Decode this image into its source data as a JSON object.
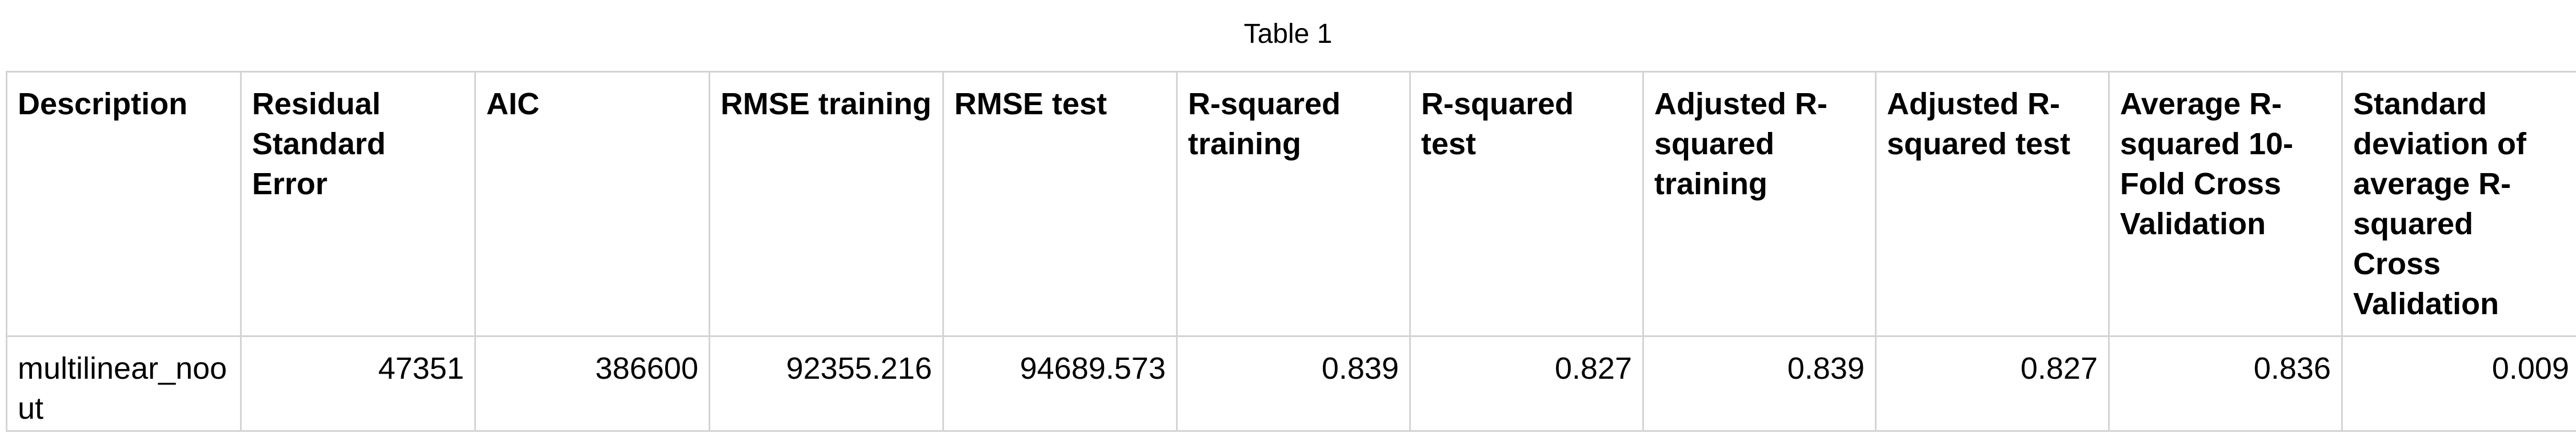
{
  "caption": "Table 1",
  "table": {
    "headers": [
      "Description",
      "Residual Standard Error",
      "AIC",
      "RMSE training",
      "RMSE test",
      "R-squared training",
      "R-squared test",
      "Adjusted R-squared training",
      "Adjusted R-squared test",
      "Average R-squared 10-Fold Cross Validation",
      "Standard deviation of average R-squared Cross Validation"
    ],
    "rows": [
      {
        "description": "multilinear_noout",
        "residual_standard_error": "47351",
        "aic": "386600",
        "rmse_training": "92355.216",
        "rmse_test": "94689.573",
        "r_squared_training": "0.839",
        "r_squared_test": "0.827",
        "adjusted_r_squared_training": "0.839",
        "adjusted_r_squared_test": "0.827",
        "average_r_squared_cv": "0.836",
        "sd_average_r_squared_cv": "0.009"
      }
    ]
  }
}
